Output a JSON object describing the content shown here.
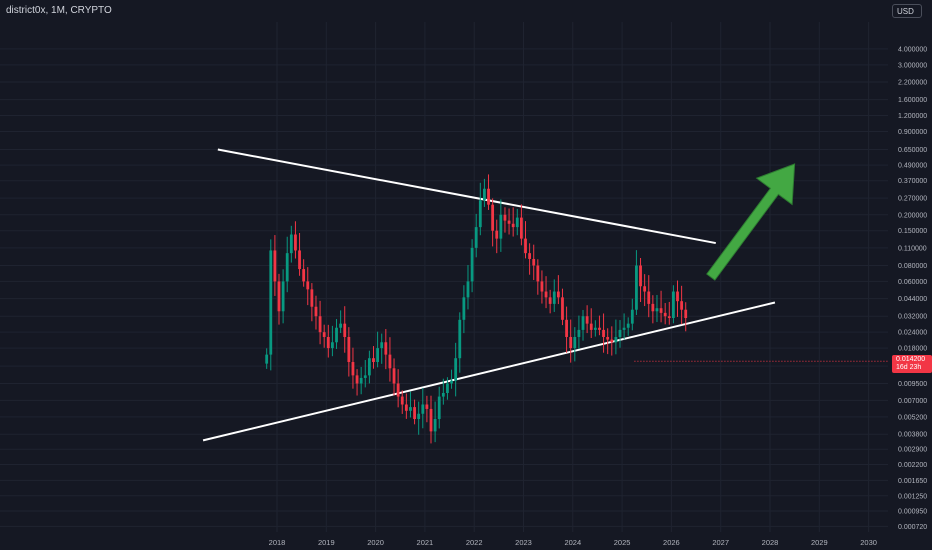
{
  "header": {
    "symbol_line": "district0x, 1M, CRYPTO",
    "currency_button": "USD"
  },
  "last_price": {
    "value": "0.014200",
    "countdown": "16d 23h",
    "color": "#f23645"
  },
  "colors": {
    "background": "#151823",
    "up": "#089981",
    "down": "#f23645",
    "trendline": "#ffffff",
    "arrow": "#43a843",
    "axis_text": "#b2b5be"
  },
  "chart_data": {
    "type": "candlestick",
    "interval": "1M",
    "y_scale": "log",
    "ylim": [
      0.00065,
      6.5
    ],
    "xlim": [
      2017.0,
      2030.2
    ],
    "y_ticks": [
      "4.000000",
      "3.000000",
      "2.200000",
      "1.600000",
      "1.200000",
      "0.900000",
      "0.650000",
      "0.490000",
      "0.370000",
      "0.270000",
      "0.200000",
      "0.150000",
      "0.110000",
      "0.080000",
      "0.060000",
      "0.044000",
      "0.032000",
      "0.024000",
      "0.018000",
      "0.013000",
      "0.009500",
      "0.007000",
      "0.005200",
      "0.003800",
      "0.002900",
      "0.002200",
      "0.001650",
      "0.001250",
      "0.000950",
      "0.000720"
    ],
    "x_ticks": [
      "2018",
      "2019",
      "2020",
      "2021",
      "2022",
      "2023",
      "2024",
      "2025",
      "2026",
      "2027",
      "2028",
      "2029",
      "2030"
    ],
    "monthly_close": [
      0.016,
      0.105,
      0.06,
      0.035,
      0.06,
      0.1,
      0.14,
      0.105,
      0.075,
      0.06,
      0.052,
      0.038,
      0.032,
      0.024,
      0.022,
      0.018,
      0.02,
      0.026,
      0.028,
      0.022,
      0.014,
      0.011,
      0.0095,
      0.0105,
      0.011,
      0.015,
      0.014,
      0.018,
      0.02,
      0.016,
      0.0125,
      0.0095,
      0.0075,
      0.0065,
      0.0058,
      0.0062,
      0.005,
      0.0055,
      0.0065,
      0.006,
      0.004,
      0.005,
      0.0075,
      0.008,
      0.0095,
      0.01,
      0.015,
      0.03,
      0.045,
      0.06,
      0.11,
      0.16,
      0.26,
      0.32,
      0.24,
      0.15,
      0.13,
      0.2,
      0.18,
      0.17,
      0.16,
      0.19,
      0.13,
      0.1,
      0.09,
      0.08,
      0.06,
      0.05,
      0.045,
      0.04,
      0.05,
      0.045,
      0.03,
      0.022,
      0.018,
      0.022,
      0.025,
      0.032,
      0.028,
      0.025,
      0.026,
      0.025,
      0.022,
      0.021,
      0.02,
      0.022,
      0.025,
      0.026,
      0.028,
      0.036,
      0.08,
      0.055,
      0.05,
      0.04,
      0.035,
      0.037,
      0.034,
      0.032,
      0.031,
      0.05,
      0.042,
      0.036,
      0.031
    ],
    "trendlines": [
      {
        "name": "upper",
        "points": [
          [
            2016.8,
            0.65
          ],
          [
            2026.9,
            0.12
          ]
        ]
      },
      {
        "name": "lower",
        "points": [
          [
            2016.5,
            0.0034
          ],
          [
            2028.1,
            0.041
          ]
        ]
      }
    ],
    "arrow": {
      "from": [
        2026.8,
        0.065
      ],
      "to": [
        2028.5,
        0.5
      ]
    },
    "grid": true
  }
}
